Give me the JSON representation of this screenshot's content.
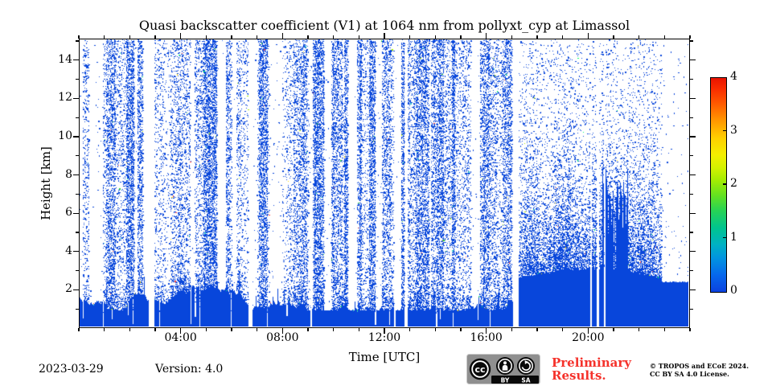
{
  "title": "Quasi backscatter coefficient (V1) at 1064 nm from pollyxt_cyp at Limassol",
  "x_axis": {
    "label": "Time [UTC]"
  },
  "y_axis": {
    "label": "Height [km]"
  },
  "footer": {
    "date": "2023-03-29",
    "version_label": "Version: 4.0",
    "preliminary_line1": "Preliminary",
    "preliminary_line2": "Results.",
    "copyright_line1": "© TROPOS and ECoE 2024.",
    "copyright_line2": "CC BY SA 4.0 License.",
    "badge_cc": "cc",
    "badge_by": "BY",
    "badge_sa": "SA"
  },
  "colors": {
    "dot_blue": "#0846db",
    "preliminary_red": "#f5322b",
    "speck_palette": [
      "#2ecc40",
      "#ffdc00",
      "#ff4136",
      "#01ff70",
      "#39cccc",
      "#aaee00"
    ]
  },
  "chart_data": {
    "type": "heatmap",
    "title": "Quasi backscatter coefficient (V1) at 1064 nm from pollyxt_cyp at Limassol",
    "xlabel": "Time [UTC]",
    "ylabel": "Height [km]",
    "x_range_hours": [
      0,
      24
    ],
    "x_major_ticks": [
      {
        "hour": 4,
        "label": "04:00"
      },
      {
        "hour": 8,
        "label": "08:00"
      },
      {
        "hour": 12,
        "label": "12:00"
      },
      {
        "hour": 16,
        "label": "16:00"
      },
      {
        "hour": 20,
        "label": "20:00"
      }
    ],
    "x_minor_interval_hours": 1,
    "y_range_km": [
      0,
      15.13
    ],
    "y_major_ticks_km": [
      2,
      4,
      6,
      8,
      10,
      12,
      14
    ],
    "y_minor_interval_km": 1,
    "grid": false,
    "legend": "colorbar right",
    "colorbar": {
      "min": 0,
      "max": 4,
      "label_values": [
        0,
        1,
        2,
        3,
        4
      ],
      "inner_tick_values": [
        1,
        2,
        3
      ],
      "gradient_bottom_to_top": [
        {
          "pos": 0.0,
          "color": "#0b42e0"
        },
        {
          "pos": 0.08,
          "color": "#0668ec"
        },
        {
          "pos": 0.16,
          "color": "#0195e0"
        },
        {
          "pos": 0.22,
          "color": "#00b1c4"
        },
        {
          "pos": 0.3,
          "color": "#00c48e"
        },
        {
          "pos": 0.38,
          "color": "#27d355"
        },
        {
          "pos": 0.45,
          "color": "#63e121"
        },
        {
          "pos": 0.52,
          "color": "#a2ec03"
        },
        {
          "pos": 0.58,
          "color": "#d3f200"
        },
        {
          "pos": 0.64,
          "color": "#f4ef00"
        },
        {
          "pos": 0.72,
          "color": "#ffcf00"
        },
        {
          "pos": 0.8,
          "color": "#ff9800"
        },
        {
          "pos": 0.88,
          "color": "#ff5a00"
        },
        {
          "pos": 0.95,
          "color": "#f92c00"
        },
        {
          "pos": 1.0,
          "color": "#e91300"
        }
      ]
    },
    "data_gap_hours": [
      [
        2.72,
        2.95
      ],
      [
        6.65,
        6.83
      ],
      [
        12.8,
        12.93
      ],
      [
        17.08,
        17.32
      ],
      [
        20.13,
        20.2
      ],
      [
        20.4,
        20.47
      ],
      [
        20.68,
        20.74
      ]
    ],
    "features": {
      "daytime_boundary_layer": {
        "time_hours": [
          0,
          17.08
        ],
        "top_km_min": 0.85,
        "top_km_max": 2.25,
        "spike_prob": 0.055,
        "spike_extra_km": 1.0,
        "notch_prob": 0.055,
        "description": "solid blue near-surface layer ~1-2 km with many narrow white gaps"
      },
      "daytime_noise_speckle": {
        "time_hours": [
          0,
          17.08
        ],
        "height_km": [
          0,
          15.13
        ],
        "stripe_density_low": 0.012,
        "stripe_density_mid": 0.12,
        "stripe_density_high": 0.34,
        "description": "vertically striped random speckle filling the free troposphere"
      },
      "evening_aerosol_layer": {
        "time_hours": [
          17.32,
          22.96
        ],
        "solid_top_km_base": 2.55,
        "solid_top_km_amp": 0.5,
        "speckle_peak_density": 0.62,
        "speckle_decay_km": 2.6,
        "speckle_floor": 0.045,
        "description": "dense aerosol: solid to ~3 km, speckle density decaying with height"
      },
      "cloud_spikes": {
        "time_hours": [
          20.6,
          21.62
        ],
        "base_km": 4.0,
        "top_km_max": 8.7,
        "description": "jagged solid cloud/virga spikes reaching ~8.5 km"
      },
      "late_clean_period": {
        "time_hours": [
          22.96,
          24
        ],
        "solid_top_km": 2.35,
        "sparse_density": 0.007,
        "description": "clean block: solid signal to ~2.4 km, very sparse noise above"
      },
      "colored_specks": {
        "prob_at_layer_top": 0.035,
        "prob_in_noise": 0.004,
        "description": "occasional green/yellow/red pixels of higher backscatter at layer tops"
      }
    }
  }
}
